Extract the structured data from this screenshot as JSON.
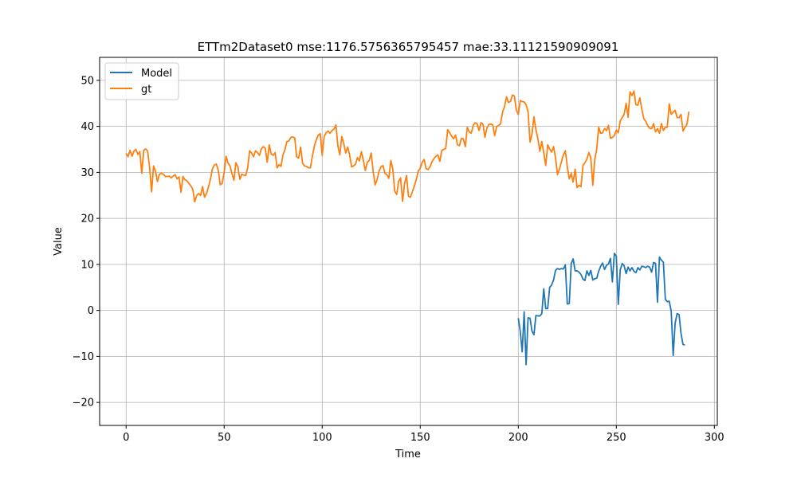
{
  "chart_data": {
    "type": "line",
    "title": "ETTm2Dataset0 mse:1176.5756365795457 mae:33.11121590909091",
    "xlabel": "Time",
    "ylabel": "Value",
    "xlim": [
      -13.5,
      301.5
    ],
    "ylim": [
      -25,
      55
    ],
    "xticks": [
      0,
      50,
      100,
      150,
      200,
      250,
      300
    ],
    "yticks": [
      -20,
      -10,
      0,
      10,
      20,
      30,
      40,
      50
    ],
    "xtick_labels": [
      "0",
      "50",
      "100",
      "150",
      "200",
      "250",
      "300"
    ],
    "ytick_labels": [
      "−20",
      "−10",
      "0",
      "10",
      "20",
      "30",
      "40",
      "50"
    ],
    "grid": true,
    "legend_position": "upper-left",
    "series": [
      {
        "name": "Model",
        "color": "#1f77b4",
        "x_start": 200,
        "values": [
          -1.7,
          -4.5,
          -9.0,
          -0.3,
          -11.8,
          -1.6,
          -1.7,
          -4.5,
          -5.3,
          -1.1,
          -1.2,
          -1.2,
          -0.7,
          4.7,
          0.4,
          0.4,
          5.0,
          5.5,
          6.6,
          8.7,
          9.1,
          8.9,
          9.1,
          9.0,
          9.9,
          1.4,
          1.5,
          10.2,
          11.2,
          8.6,
          8.6,
          8.3,
          7.8,
          6.8,
          6.5,
          8.6,
          7.6,
          8.7,
          6.6,
          6.9,
          7.0,
          8.5,
          9.6,
          10.3,
          8.9,
          9.8,
          10.1,
          11.3,
          6.2,
          12.4,
          11.8,
          1.3,
          8.8,
          10.2,
          9.7,
          8.0,
          9.4,
          8.6,
          9.3,
          8.5,
          8.2,
          9.3,
          8.8,
          9.6,
          9.5,
          9.3,
          9.6,
          9.4,
          8.3,
          10.4,
          10.2,
          1.8,
          11.6,
          10.9,
          10.5,
          2.4,
          1.9,
          2.0,
          -0.2,
          -9.8,
          -2.8,
          -0.7,
          -0.9,
          -5.0,
          -7.4,
          -7.5
        ]
      },
      {
        "name": "gt",
        "color": "#ff7f0e",
        "x_start": 0,
        "values": [
          34.1,
          33.4,
          34.8,
          33.5,
          34.6,
          35.0,
          33.9,
          34.5,
          29.8,
          34.8,
          35.1,
          34.6,
          31.0,
          25.8,
          31.4,
          30.2,
          28.0,
          29.6,
          29.8,
          29.6,
          29.1,
          29.1,
          29.2,
          28.8,
          29.2,
          29.5,
          28.6,
          29.0,
          25.7,
          29.1,
          28.4,
          28.2,
          27.6,
          27.1,
          26.3,
          23.6,
          25.0,
          25.4,
          25.0,
          26.9,
          24.6,
          25.4,
          26.8,
          28.5,
          30.7,
          31.6,
          31.8,
          30.5,
          27.3,
          27.6,
          30.0,
          33.5,
          32.0,
          31.4,
          29.7,
          28.3,
          32.1,
          31.2,
          28.5,
          29.6,
          29.4,
          29.3,
          31.0,
          34.7,
          34.2,
          33.4,
          34.7,
          34.3,
          33.7,
          35.1,
          35.6,
          35.2,
          32.2,
          36.0,
          34.0,
          33.7,
          34.3,
          31.0,
          31.7,
          31.3,
          33.8,
          34.9,
          36.7,
          36.8,
          37.6,
          37.7,
          37.5,
          33.4,
          33.1,
          35.5,
          32.0,
          31.4,
          31.3,
          31.0,
          31.0,
          33.5,
          35.7,
          37.1,
          38.1,
          38.4,
          33.7,
          37.8,
          38.6,
          39.0,
          38.5,
          39.1,
          39.4,
          40.3,
          35.8,
          33.8,
          37.8,
          36.3,
          34.2,
          35.5,
          33.8,
          31.2,
          31.4,
          31.8,
          33.2,
          32.5,
          34.5,
          32.6,
          30.4,
          32.2,
          32.6,
          34.2,
          30.2,
          27.3,
          28.4,
          30.3,
          31.2,
          31.5,
          29.8,
          29.5,
          28.7,
          32.6,
          30.7,
          25.9,
          25.2,
          28.1,
          28.8,
          23.7,
          27.5,
          29.3,
          24.8,
          24.6,
          25.8,
          27.0,
          28.5,
          30.3,
          30.9,
          32.2,
          32.8,
          30.8,
          30.6,
          31.2,
          32.3,
          33.0,
          33.5,
          33.8,
          32.4,
          34.8,
          35.0,
          35.2,
          39.3,
          38.6,
          37.9,
          37.3,
          38.1,
          36.0,
          35.8,
          37.4,
          37.3,
          35.6,
          39.8,
          38.8,
          38.5,
          40.2,
          40.8,
          40.6,
          39.1,
          40.8,
          40.5,
          37.6,
          39.6,
          40.4,
          40.5,
          40.3,
          38.0,
          40.0,
          40.2,
          40.6,
          43.1,
          44.3,
          46.4,
          45.2,
          45.4,
          46.8,
          46.6,
          43.6,
          42.6,
          45.6,
          45.4,
          45.3,
          44.7,
          43.2,
          36.6,
          38.3,
          42.1,
          39.3,
          37.3,
          34.6,
          36.7,
          34.3,
          31.5,
          36.0,
          35.1,
          34.4,
          35.6,
          33.2,
          29.5,
          30.7,
          32.3,
          33.8,
          34.7,
          31.2,
          28.6,
          29.8,
          27.9,
          30.7,
          26.7,
          27.2,
          26.9,
          31.5,
          32.1,
          32.9,
          34.3,
          33.1,
          27.2,
          32.8,
          35.0,
          39.8,
          38.5,
          38.6,
          39.5,
          39.1,
          40.2,
          37.4,
          37.6,
          38.0,
          39.2,
          38.6,
          41.2,
          41.9,
          42.6,
          45.0,
          42.0,
          47.5,
          46.7,
          47.7,
          44.7,
          44.6,
          46.2,
          43.8,
          41.7,
          41.1,
          40.2,
          39.6,
          39.5,
          40.6,
          38.8,
          39.5,
          38.5,
          40.6,
          39.1,
          39.8,
          39.8,
          44.9,
          42.6,
          43.1,
          43.5,
          41.9,
          41.9,
          42.6,
          39.0,
          39.8,
          40.4,
          43.2
        ]
      }
    ]
  }
}
